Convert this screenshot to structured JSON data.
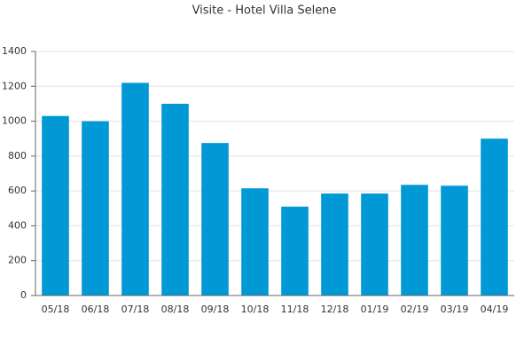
{
  "chart_data": {
    "type": "bar",
    "title": "Visite - Hotel Villa Selene",
    "categories": [
      "05/18",
      "06/18",
      "07/18",
      "08/18",
      "09/18",
      "10/18",
      "11/18",
      "12/18",
      "01/19",
      "02/19",
      "03/19",
      "04/19"
    ],
    "values": [
      1030,
      1000,
      1220,
      1100,
      875,
      615,
      510,
      585,
      585,
      635,
      630,
      900
    ],
    "color": "#0099d6",
    "ylim": [
      0,
      1400
    ],
    "yticks": [
      0,
      200,
      400,
      600,
      800,
      1000,
      1200,
      1400
    ],
    "grid": true
  }
}
